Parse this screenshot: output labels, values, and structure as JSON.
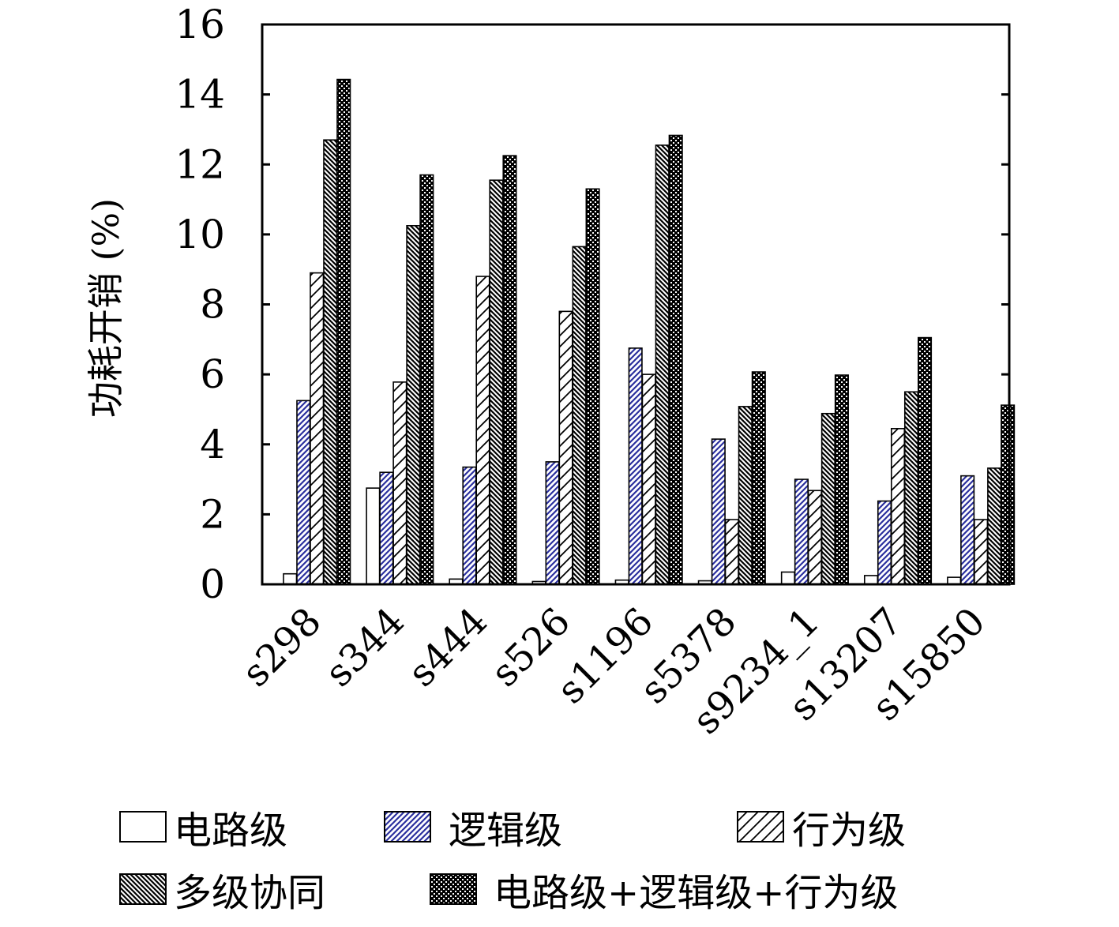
{
  "chart_data": {
    "type": "bar",
    "title": "",
    "xlabel": "",
    "ylabel": "功耗开销 (%)",
    "ylim": [
      0,
      16
    ],
    "yticks": [
      "0",
      "2",
      "4",
      "6",
      "8",
      "10",
      "12",
      "14",
      "16"
    ],
    "categories": [
      "s298",
      "s344",
      "s444",
      "s526",
      "s1196",
      "s5378",
      "s9234_1",
      "s13207",
      "s15850"
    ],
    "legend_position": "bottom",
    "grid": false,
    "series": [
      {
        "name": "电路级",
        "pattern": "empty",
        "color": "#ffffff",
        "values": [
          0.3,
          2.75,
          0.15,
          0.08,
          0.12,
          0.1,
          0.35,
          0.25,
          0.2
        ]
      },
      {
        "name": "逻辑级",
        "pattern": "hatch-forward",
        "color": "#2a2f9e",
        "values": [
          5.25,
          3.2,
          3.35,
          3.5,
          6.75,
          4.15,
          3.0,
          2.38,
          3.1
        ]
      },
      {
        "name": "行为级",
        "pattern": "hatch-forward-wide",
        "color": "#000000",
        "values": [
          8.9,
          5.78,
          8.8,
          7.8,
          6.0,
          1.85,
          2.68,
          4.45,
          1.85
        ]
      },
      {
        "name": "多级协同",
        "pattern": "hatch-backward",
        "color": "#000000",
        "values": [
          12.7,
          10.25,
          11.55,
          9.65,
          12.55,
          5.08,
          4.88,
          5.5,
          3.32
        ]
      },
      {
        "name": "电路级+逻辑级+行为级",
        "pattern": "crosshatch",
        "color": "#000000",
        "values": [
          14.43,
          11.7,
          12.25,
          11.3,
          12.83,
          6.07,
          5.98,
          7.05,
          5.12
        ]
      }
    ]
  }
}
